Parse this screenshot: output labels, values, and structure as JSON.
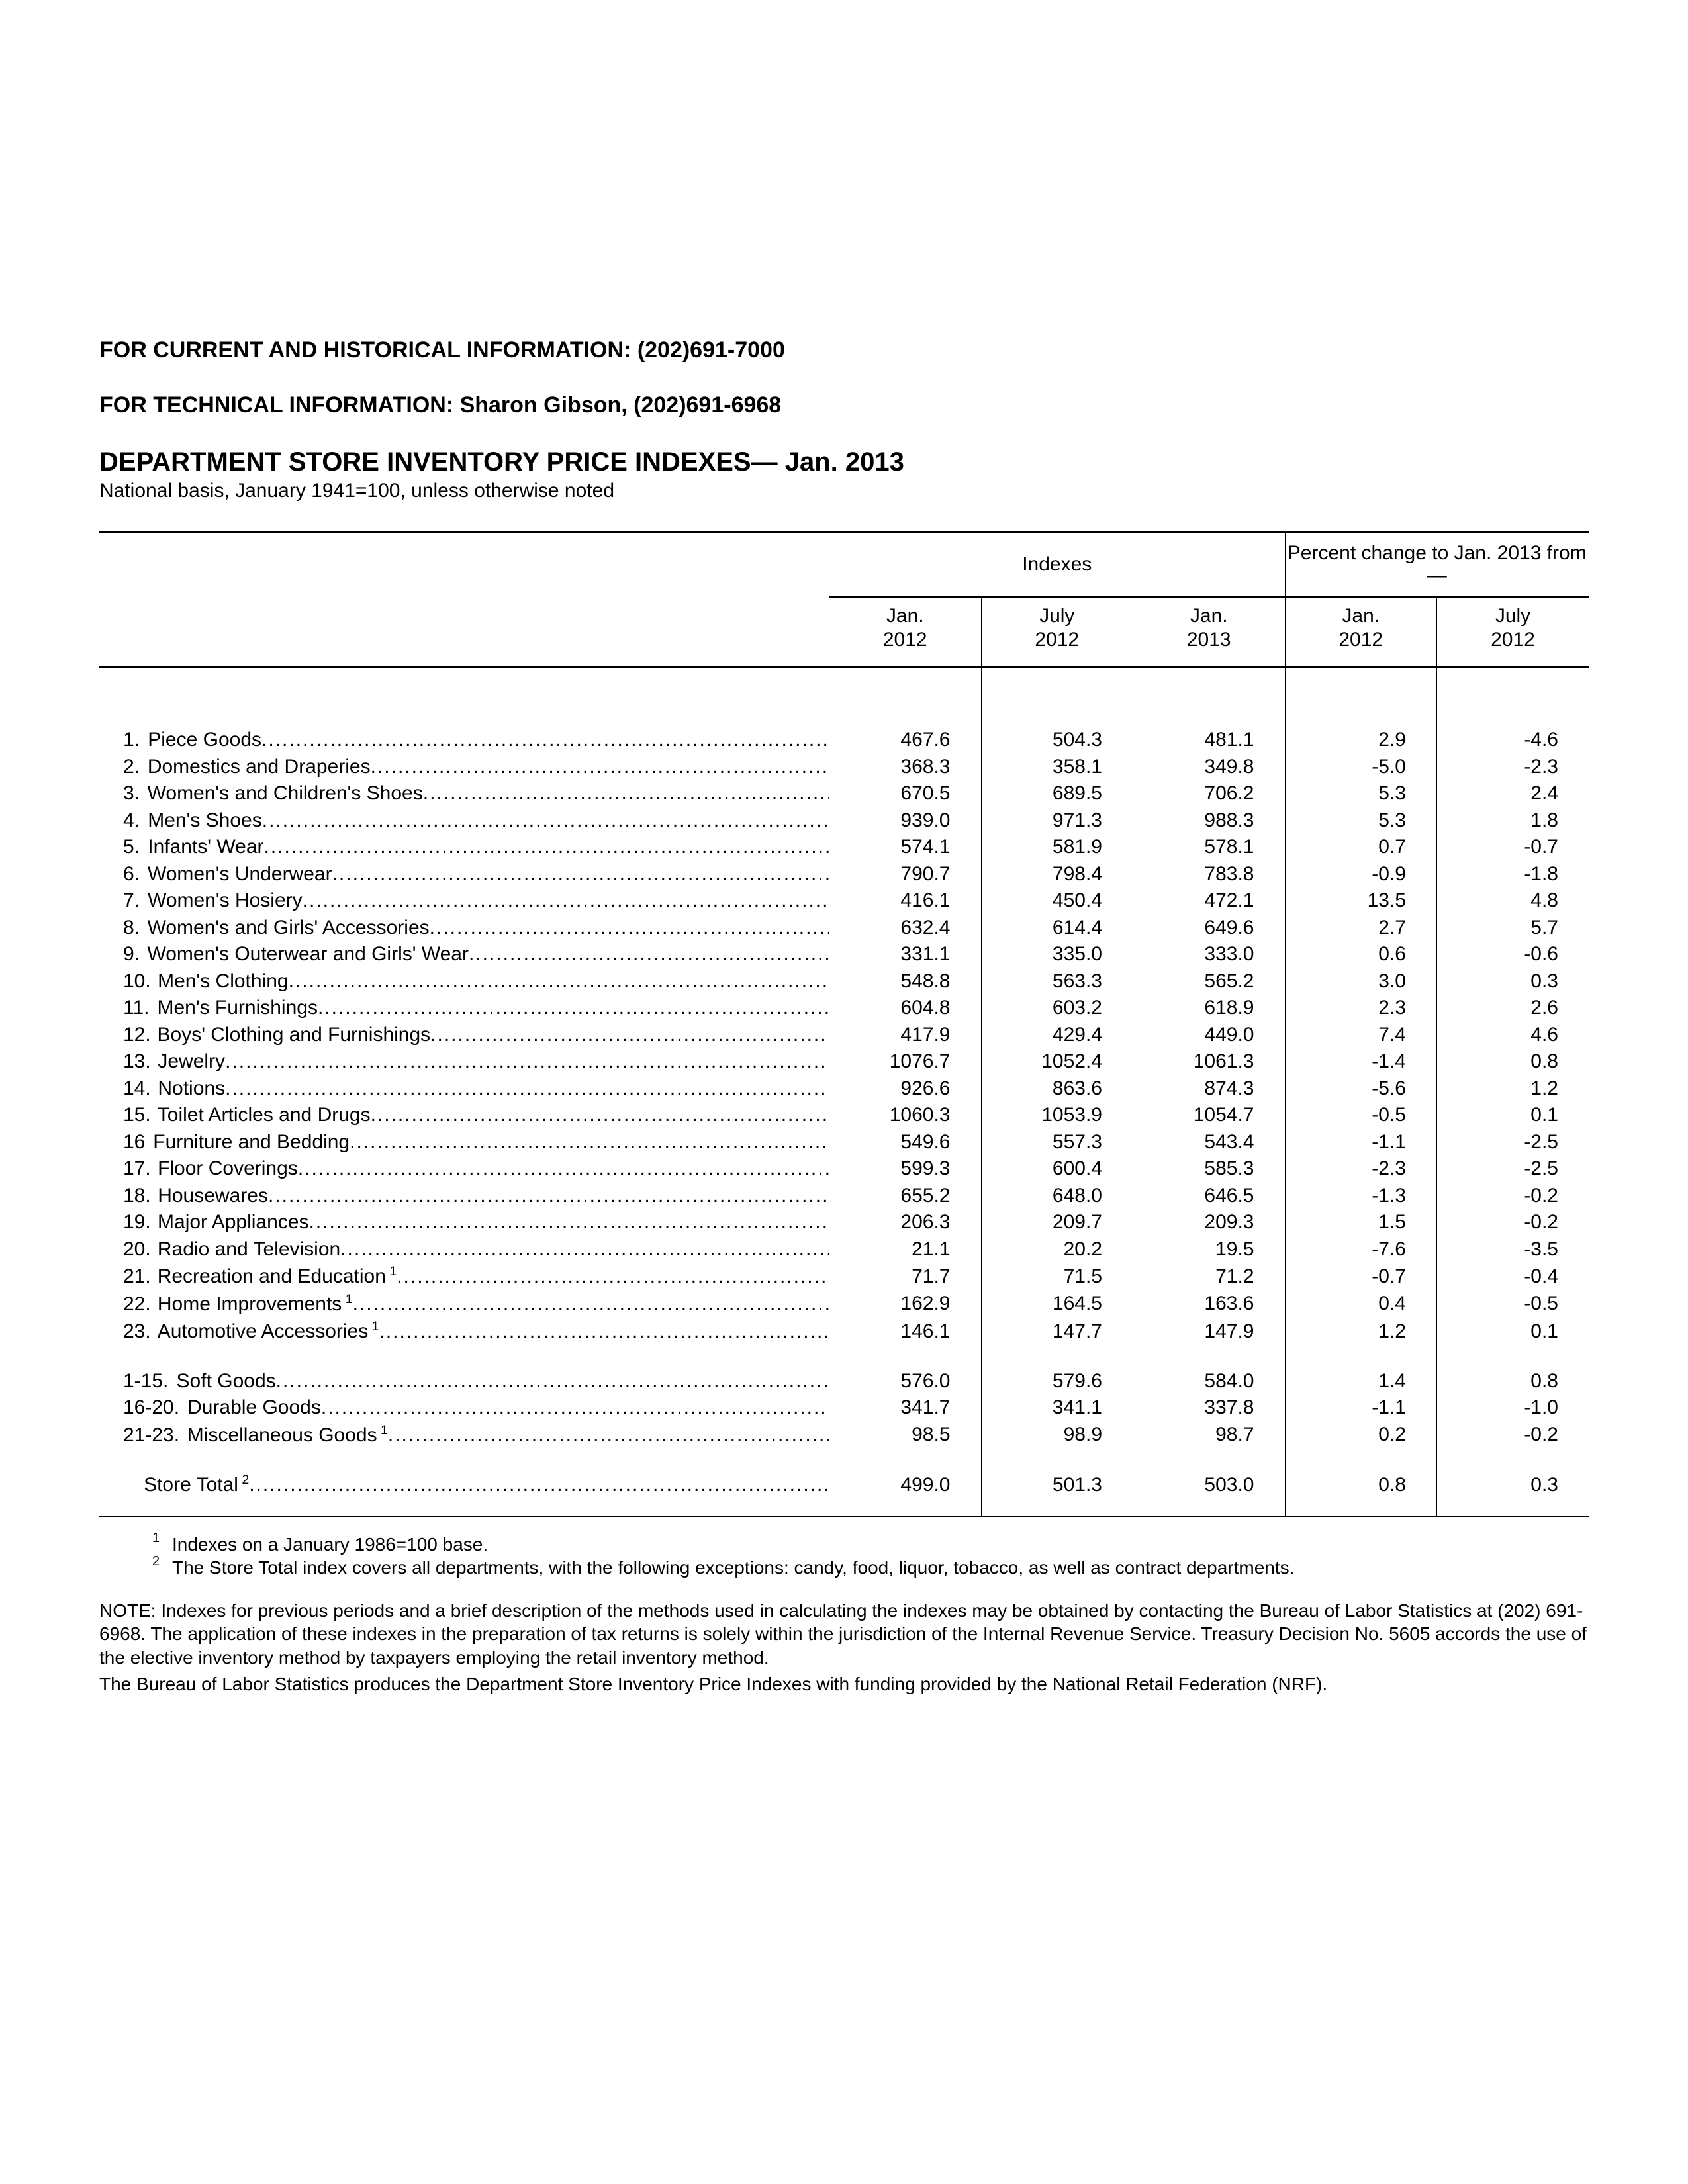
{
  "header": {
    "info_line": "FOR CURRENT AND HISTORICAL INFORMATION: (202)691-7000",
    "tech_line": "FOR TECHNICAL INFORMATION: Sharon Gibson, (202)691-6968",
    "title": "DEPARTMENT STORE INVENTORY PRICE INDEXES— Jan. 2013",
    "subtitle": "National basis, January 1941=100, unless otherwise noted"
  },
  "columns": {
    "group_indexes": "Indexes",
    "group_pct": "Percent change to Jan. 2013 from—",
    "c1a": "Jan.",
    "c1b": "2012",
    "c2a": "July",
    "c2b": "2012",
    "c3a": "Jan.",
    "c3b": "2013",
    "c4a": "Jan.",
    "c4b": "2012",
    "c5a": "July",
    "c5b": "2012"
  },
  "rows": [
    {
      "num": "1.",
      "label": "Piece Goods",
      "v": [
        "467.6",
        "504.3",
        "481.1",
        "2.9",
        "-4.6"
      ]
    },
    {
      "num": "2.",
      "label": "Domestics and Draperies",
      "v": [
        "368.3",
        "358.1",
        "349.8",
        "-5.0",
        "-2.3"
      ]
    },
    {
      "num": "3.",
      "label": "Women's and Children's Shoes",
      "v": [
        "670.5",
        "689.5",
        "706.2",
        "5.3",
        "2.4"
      ]
    },
    {
      "num": "4.",
      "label": "Men's Shoes",
      "v": [
        "939.0",
        "971.3",
        "988.3",
        "5.3",
        "1.8"
      ]
    },
    {
      "num": "5.",
      "label": "Infants' Wear",
      "v": [
        "574.1",
        "581.9",
        "578.1",
        "0.7",
        "-0.7"
      ]
    },
    {
      "num": "6.",
      "label": "Women's Underwear",
      "v": [
        "790.7",
        "798.4",
        "783.8",
        "-0.9",
        "-1.8"
      ]
    },
    {
      "num": "7.",
      "label": "Women's Hosiery",
      "v": [
        "416.1",
        "450.4",
        "472.1",
        "13.5",
        "4.8"
      ]
    },
    {
      "num": "8.",
      "label": "Women's and Girls' Accessories",
      "v": [
        "632.4",
        "614.4",
        "649.6",
        "2.7",
        "5.7"
      ]
    },
    {
      "num": "9.",
      "label": "Women's Outerwear and Girls' Wear",
      "v": [
        "331.1",
        "335.0",
        "333.0",
        "0.6",
        "-0.6"
      ]
    },
    {
      "num": "10.",
      "label": "Men's Clothing",
      "v": [
        "548.8",
        "563.3",
        "565.2",
        "3.0",
        "0.3"
      ]
    },
    {
      "num": "11.",
      "label": "Men's Furnishings",
      "v": [
        "604.8",
        "603.2",
        "618.9",
        "2.3",
        "2.6"
      ]
    },
    {
      "num": "12.",
      "label": "Boys' Clothing and Furnishings",
      "v": [
        "417.9",
        "429.4",
        "449.0",
        "7.4",
        "4.6"
      ]
    },
    {
      "num": "13.",
      "label": "Jewelry",
      "v": [
        "1076.7",
        "1052.4",
        "1061.3",
        "-1.4",
        "0.8"
      ]
    },
    {
      "num": "14.",
      "label": "Notions",
      "v": [
        "926.6",
        "863.6",
        "874.3",
        "-5.6",
        "1.2"
      ]
    },
    {
      "num": "15.",
      "label": "Toilet Articles and Drugs",
      "v": [
        "1060.3",
        "1053.9",
        "1054.7",
        "-0.5",
        "0.1"
      ]
    },
    {
      "num": "16",
      "label": "Furniture and Bedding",
      "v": [
        "549.6",
        "557.3",
        "543.4",
        "-1.1",
        "-2.5"
      ]
    },
    {
      "num": "17.",
      "label": "Floor Coverings",
      "v": [
        "599.3",
        "600.4",
        "585.3",
        "-2.3",
        "-2.5"
      ]
    },
    {
      "num": "18.",
      "label": "Housewares",
      "v": [
        "655.2",
        "648.0",
        "646.5",
        "-1.3",
        "-0.2"
      ]
    },
    {
      "num": "19.",
      "label": "Major Appliances",
      "v": [
        "206.3",
        "209.7",
        "209.3",
        "1.5",
        "-0.2"
      ]
    },
    {
      "num": "20.",
      "label": "Radio and Television",
      "v": [
        "21.1",
        "20.2",
        "19.5",
        "-7.6",
        "-3.5"
      ]
    },
    {
      "num": "21.",
      "label": "Recreation and Education",
      "sup": "1",
      "v": [
        "71.7",
        "71.5",
        "71.2",
        "-0.7",
        "-0.4"
      ]
    },
    {
      "num": "22.",
      "label": "Home Improvements",
      "sup": "1",
      "v": [
        "162.9",
        "164.5",
        "163.6",
        "0.4",
        "-0.5"
      ]
    },
    {
      "num": "23.",
      "label": "Automotive Accessories",
      "sup": "1",
      "v": [
        "146.1",
        "147.7",
        "147.9",
        "1.2",
        "0.1"
      ]
    }
  ],
  "summary": [
    {
      "num": "1-15.",
      "label": "Soft Goods",
      "v": [
        "576.0",
        "579.6",
        "584.0",
        "1.4",
        "0.8"
      ]
    },
    {
      "num": "16-20.",
      "label": "Durable Goods",
      "v": [
        "341.7",
        "341.1",
        "337.8",
        "-1.1",
        "-1.0"
      ]
    },
    {
      "num": "21-23.",
      "label": "Miscellaneous Goods",
      "sup": "1",
      "v": [
        "98.5",
        "98.9",
        "98.7",
        "0.2",
        "-0.2"
      ]
    }
  ],
  "total": {
    "label": "Store Total",
    "sup": "2",
    "v": [
      "499.0",
      "501.3",
      "503.0",
      "0.8",
      "0.3"
    ]
  },
  "footnotes": {
    "f1_mark": "1",
    "f1_text": "Indexes on a January 1986=100 base.",
    "f2_mark": "2",
    "f2_text": "The Store Total index covers all departments, with the following exceptions: candy, food, liquor, tobacco, as well as contract departments."
  },
  "notes": {
    "p1": "NOTE:  Indexes for previous periods and a brief description of the methods used in calculating the indexes may be obtained by contacting the Bureau of Labor Statistics at (202) 691-6968.  The application of these indexes in the preparation of tax returns is solely within the jurisdiction of the Internal Revenue Service.  Treasury Decision No. 5605 accords the use of the elective inventory method by taxpayers employing the retail inventory method.",
    "p2": "The Bureau of Labor Statistics produces the Department Store Inventory Price Indexes with funding provided by the National Retail Federation (NRF)."
  },
  "layout": {
    "num_width_narrow": 50,
    "num_width_wide": 100,
    "total_indent": 110
  }
}
